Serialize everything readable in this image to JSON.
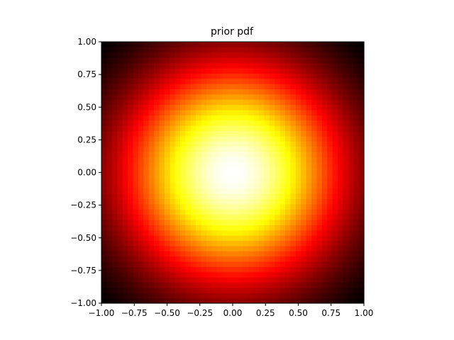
{
  "chart_data": {
    "type": "heatmap",
    "title": "prior pdf",
    "xlabel": "",
    "ylabel": "",
    "xlim": [
      -1.0,
      1.0
    ],
    "ylim": [
      -1.0,
      1.0
    ],
    "x_ticks": [
      "−1.00",
      "−0.75",
      "−0.50",
      "−0.25",
      "0.00",
      "0.25",
      "0.50",
      "0.75",
      "1.00"
    ],
    "y_ticks": [
      "−1.00",
      "−0.75",
      "−0.50",
      "−0.25",
      "0.00",
      "0.25",
      "0.50",
      "0.75",
      "1.00"
    ],
    "x_tick_values": [
      -1.0,
      -0.75,
      -0.5,
      -0.25,
      0.0,
      0.25,
      0.5,
      0.75,
      1.0
    ],
    "y_tick_values": [
      -1.0,
      -0.75,
      -0.5,
      -0.25,
      0.0,
      0.25,
      0.5,
      0.75,
      1.0
    ],
    "colormap": "hot",
    "distribution": {
      "kind": "isotropic-gaussian",
      "mean": [
        0.0,
        0.0
      ],
      "sigma": 0.6
    },
    "grid": false,
    "legend": "none"
  }
}
